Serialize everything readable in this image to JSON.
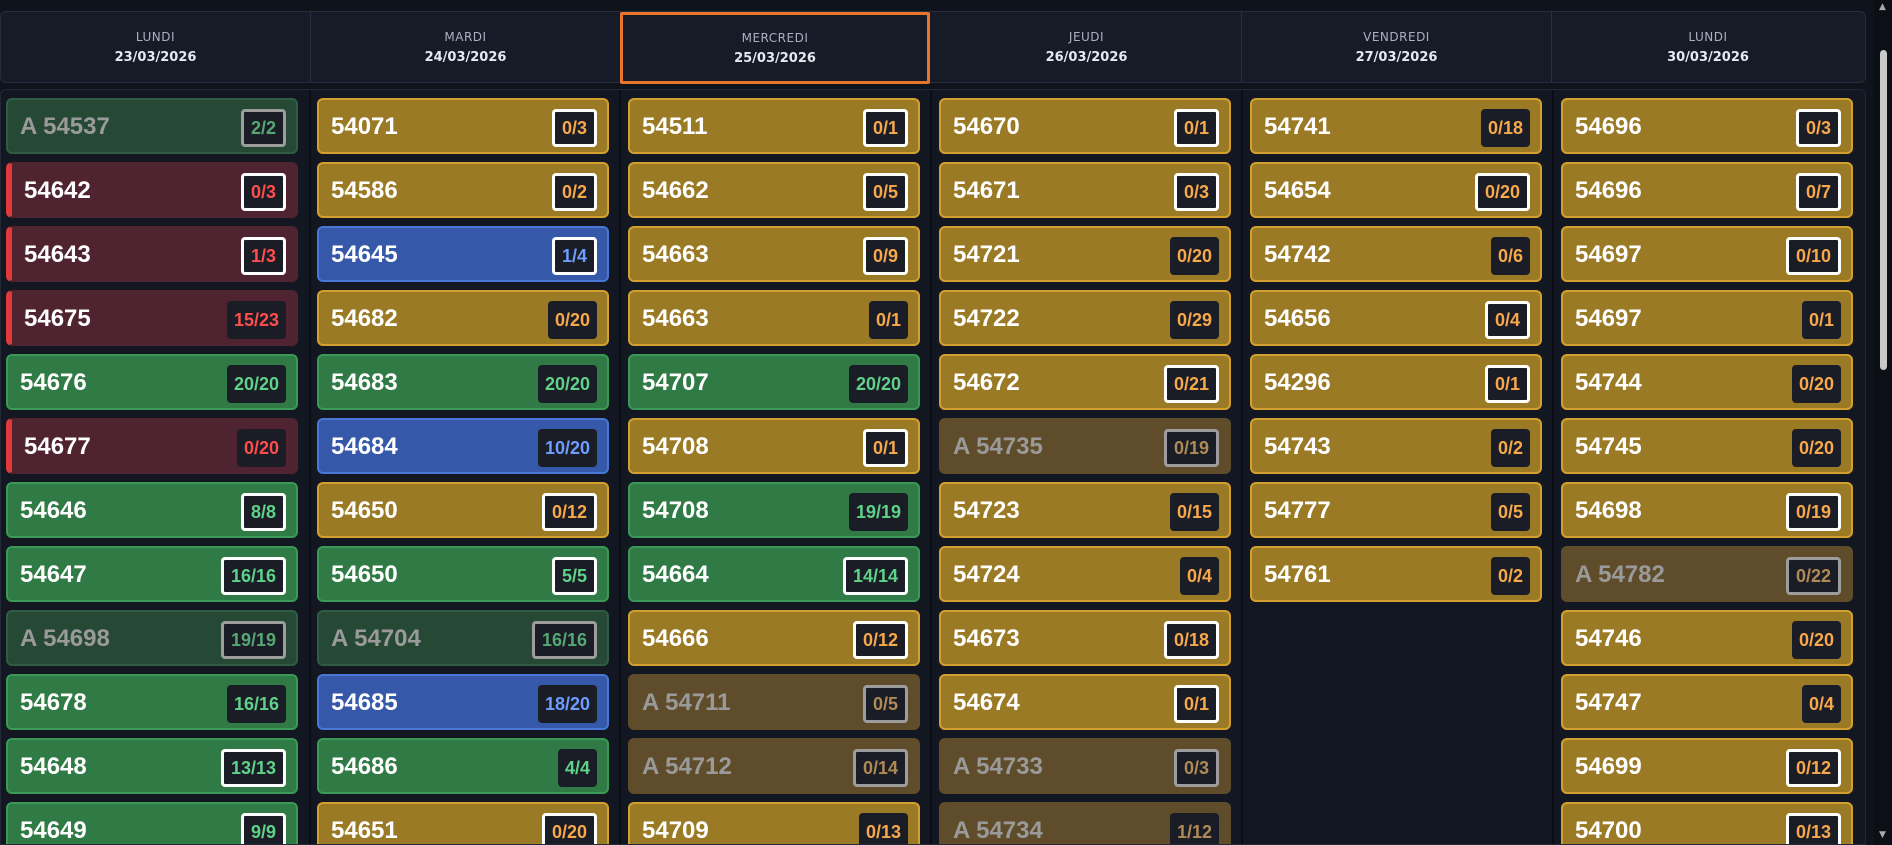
{
  "days": [
    {
      "name": "LUNDI",
      "date": "23/03/2026",
      "active": false
    },
    {
      "name": "MARDI",
      "date": "24/03/2026",
      "active": false
    },
    {
      "name": "MERCREDI",
      "date": "25/03/2026",
      "active": true
    },
    {
      "name": "JEUDI",
      "date": "26/03/2026",
      "active": false
    },
    {
      "name": "VENDREDI",
      "date": "27/03/2026",
      "active": false
    },
    {
      "name": "LUNDI",
      "date": "30/03/2026",
      "active": false
    }
  ],
  "colors": {
    "yellow": "#9b7a25",
    "green": "#2f7a45",
    "red": "#e23a3a",
    "blue": "#3658a8",
    "active_border": "#e8752c"
  },
  "columns": [
    [
      {
        "label": "A 54537",
        "count": "2/2",
        "style": "dg",
        "outlined": true
      },
      {
        "label": "54642",
        "count": "0/3",
        "style": "r",
        "outlined": true
      },
      {
        "label": "54643",
        "count": "1/3",
        "style": "r",
        "outlined": true
      },
      {
        "label": "54675",
        "count": "15/23",
        "style": "r",
        "outlined": false
      },
      {
        "label": "54676",
        "count": "20/20",
        "style": "g",
        "outlined": false
      },
      {
        "label": "54677",
        "count": "0/20",
        "style": "r",
        "outlined": false
      },
      {
        "label": "54646",
        "count": "8/8",
        "style": "g",
        "outlined": true
      },
      {
        "label": "54647",
        "count": "16/16",
        "style": "g",
        "outlined": true
      },
      {
        "label": "A 54698",
        "count": "19/19",
        "style": "dg",
        "outlined": true
      },
      {
        "label": "54678",
        "count": "16/16",
        "style": "g",
        "outlined": false
      },
      {
        "label": "54648",
        "count": "13/13",
        "style": "g",
        "outlined": true
      },
      {
        "label": "54649",
        "count": "9/9",
        "style": "g",
        "outlined": true
      }
    ],
    [
      {
        "label": "54071",
        "count": "0/3",
        "style": "y",
        "outlined": true
      },
      {
        "label": "54586",
        "count": "0/2",
        "style": "y",
        "outlined": true
      },
      {
        "label": "54645",
        "count": "1/4",
        "style": "b",
        "outlined": true
      },
      {
        "label": "54682",
        "count": "0/20",
        "style": "y",
        "outlined": false
      },
      {
        "label": "54683",
        "count": "20/20",
        "style": "g",
        "outlined": false
      },
      {
        "label": "54684",
        "count": "10/20",
        "style": "b",
        "outlined": false
      },
      {
        "label": "54650",
        "count": "0/12",
        "style": "y",
        "outlined": true
      },
      {
        "label": "54650",
        "count": "5/5",
        "style": "g",
        "outlined": true
      },
      {
        "label": "A 54704",
        "count": "16/16",
        "style": "dg",
        "outlined": true
      },
      {
        "label": "54685",
        "count": "18/20",
        "style": "b",
        "outlined": false
      },
      {
        "label": "54686",
        "count": "4/4",
        "style": "g",
        "outlined": false
      },
      {
        "label": "54651",
        "count": "0/20",
        "style": "y",
        "outlined": true
      }
    ],
    [
      {
        "label": "54511",
        "count": "0/1",
        "style": "y",
        "outlined": true
      },
      {
        "label": "54662",
        "count": "0/5",
        "style": "y",
        "outlined": true
      },
      {
        "label": "54663",
        "count": "0/9",
        "style": "y",
        "outlined": true
      },
      {
        "label": "54663",
        "count": "0/1",
        "style": "y",
        "outlined": false
      },
      {
        "label": "54707",
        "count": "20/20",
        "style": "g",
        "outlined": false
      },
      {
        "label": "54708",
        "count": "0/1",
        "style": "y",
        "outlined": true
      },
      {
        "label": "54708",
        "count": "19/19",
        "style": "g",
        "outlined": false
      },
      {
        "label": "54664",
        "count": "14/14",
        "style": "g",
        "outlined": true
      },
      {
        "label": "54666",
        "count": "0/12",
        "style": "y",
        "outlined": true
      },
      {
        "label": "A 54711",
        "count": "0/5",
        "style": "dy",
        "outlined": true
      },
      {
        "label": "A 54712",
        "count": "0/14",
        "style": "dy",
        "outlined": true
      },
      {
        "label": "54709",
        "count": "0/13",
        "style": "y",
        "outlined": false
      }
    ],
    [
      {
        "label": "54670",
        "count": "0/1",
        "style": "y",
        "outlined": true
      },
      {
        "label": "54671",
        "count": "0/3",
        "style": "y",
        "outlined": true
      },
      {
        "label": "54721",
        "count": "0/20",
        "style": "y",
        "outlined": false
      },
      {
        "label": "54722",
        "count": "0/29",
        "style": "y",
        "outlined": false
      },
      {
        "label": "54672",
        "count": "0/21",
        "style": "y",
        "outlined": true
      },
      {
        "label": "A 54735",
        "count": "0/19",
        "style": "dy",
        "outlined": true
      },
      {
        "label": "54723",
        "count": "0/15",
        "style": "y",
        "outlined": false
      },
      {
        "label": "54724",
        "count": "0/4",
        "style": "y",
        "outlined": false
      },
      {
        "label": "54673",
        "count": "0/18",
        "style": "y",
        "outlined": true
      },
      {
        "label": "54674",
        "count": "0/1",
        "style": "y",
        "outlined": true
      },
      {
        "label": "A 54733",
        "count": "0/3",
        "style": "dy",
        "outlined": true
      },
      {
        "label": "A 54734",
        "count": "1/12",
        "style": "dy",
        "outlined": false
      }
    ],
    [
      {
        "label": "54741",
        "count": "0/18",
        "style": "y",
        "outlined": false
      },
      {
        "label": "54654",
        "count": "0/20",
        "style": "y",
        "outlined": true
      },
      {
        "label": "54742",
        "count": "0/6",
        "style": "y",
        "outlined": false
      },
      {
        "label": "54656",
        "count": "0/4",
        "style": "y",
        "outlined": true
      },
      {
        "label": "54296",
        "count": "0/1",
        "style": "y",
        "outlined": true
      },
      {
        "label": "54743",
        "count": "0/2",
        "style": "y",
        "outlined": false
      },
      {
        "label": "54777",
        "count": "0/5",
        "style": "y",
        "outlined": false
      },
      {
        "label": "54761",
        "count": "0/2",
        "style": "y",
        "outlined": false
      }
    ],
    [
      {
        "label": "54696",
        "count": "0/3",
        "style": "y",
        "outlined": true
      },
      {
        "label": "54696",
        "count": "0/7",
        "style": "y",
        "outlined": true
      },
      {
        "label": "54697",
        "count": "0/10",
        "style": "y",
        "outlined": true
      },
      {
        "label": "54697",
        "count": "0/1",
        "style": "y",
        "outlined": false
      },
      {
        "label": "54744",
        "count": "0/20",
        "style": "y",
        "outlined": false
      },
      {
        "label": "54745",
        "count": "0/20",
        "style": "y",
        "outlined": false
      },
      {
        "label": "54698",
        "count": "0/19",
        "style": "y",
        "outlined": true
      },
      {
        "label": "A 54782",
        "count": "0/22",
        "style": "dy",
        "outlined": true
      },
      {
        "label": "54746",
        "count": "0/20",
        "style": "y",
        "outlined": false
      },
      {
        "label": "54747",
        "count": "0/4",
        "style": "y",
        "outlined": false
      },
      {
        "label": "54699",
        "count": "0/12",
        "style": "y",
        "outlined": true
      },
      {
        "label": "54700",
        "count": "0/13",
        "style": "y",
        "outlined": true
      }
    ]
  ]
}
